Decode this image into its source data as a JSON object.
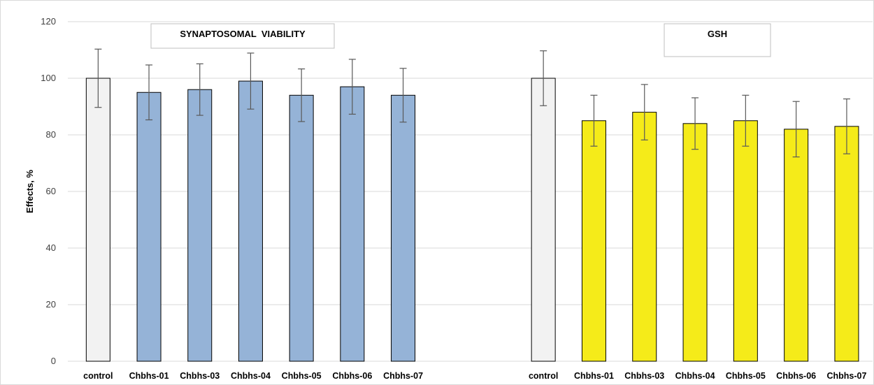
{
  "chart_data": {
    "type": "bar",
    "ylabel": "Effects, %",
    "ylim": [
      0,
      120
    ],
    "yticks": [
      0,
      20,
      40,
      60,
      80,
      100,
      120
    ],
    "grid": true,
    "panels": [
      {
        "title": "SYNAPTOSOMAL  VIABILITY",
        "categories": [
          "control",
          "Chbhs-01",
          "Chbhs-03",
          "Chbhs-04",
          "Chbhs-05",
          "Chbhs-06",
          "Chbhs-07"
        ],
        "values": [
          100,
          95,
          96,
          99,
          94,
          97,
          94
        ],
        "errors": [
          10.3,
          9.7,
          9.1,
          9.9,
          9.3,
          9.7,
          9.5
        ],
        "control_color": "#f2f2f2",
        "bar_color": "#95b3d7"
      },
      {
        "title": "GSH",
        "categories": [
          "control",
          "Chbhs-01",
          "Chbhs-03",
          "Chbhs-04",
          "Chbhs-05",
          "Chbhs-06",
          "Chbhs-07"
        ],
        "values": [
          100,
          85,
          88,
          84,
          85,
          82,
          83
        ],
        "errors": [
          9.7,
          9.0,
          9.8,
          9.1,
          9.0,
          9.8,
          9.7
        ],
        "control_color": "#f2f2f2",
        "bar_color": "#f5eb19"
      }
    ]
  }
}
